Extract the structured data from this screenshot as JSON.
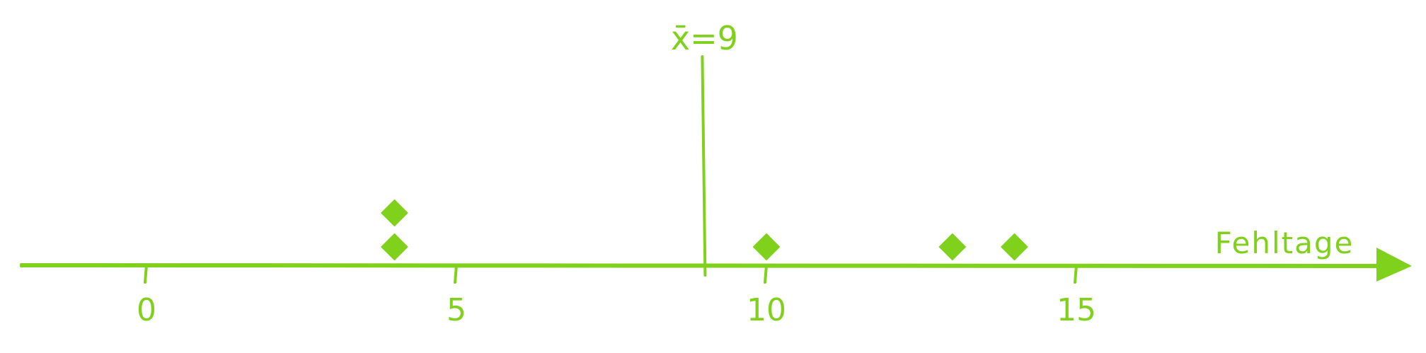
{
  "chart_data": {
    "type": "scatter",
    "title": "",
    "xlabel": "Fehltage",
    "ylabel": "",
    "xlim": [
      0,
      18
    ],
    "xticks": [
      0,
      5,
      10,
      15
    ],
    "xtick_labels": [
      "0",
      "5",
      "10",
      "15"
    ],
    "points": [
      {
        "x": 4,
        "stack": 1
      },
      {
        "x": 4,
        "stack": 2
      },
      {
        "x": 10,
        "stack": 1
      },
      {
        "x": 13,
        "stack": 1
      },
      {
        "x": 14,
        "stack": 1
      }
    ],
    "mean": {
      "value": 9,
      "label": "x̄=9"
    },
    "color": "#7fd11b",
    "grid": false
  }
}
